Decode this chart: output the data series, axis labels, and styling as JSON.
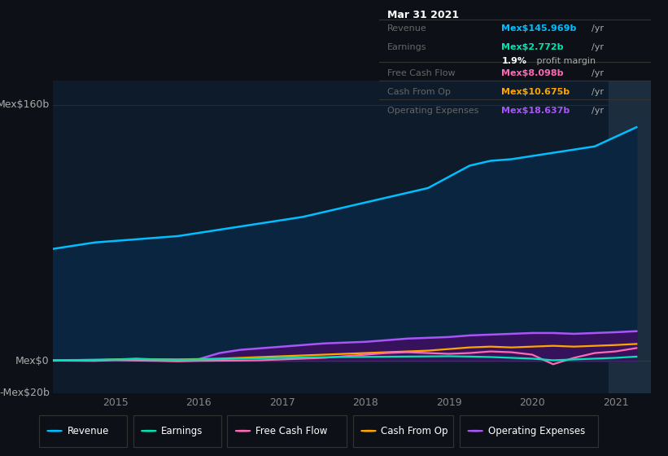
{
  "bg_color": "#0d1117",
  "plot_bg_color": "#0d1b2a",
  "title_box": {
    "date": "Mar 31 2021",
    "rows": [
      {
        "label": "Revenue",
        "value": "Mex$145.969b",
        "unit": "/yr",
        "color": "#00bfff"
      },
      {
        "label": "Earnings",
        "value": "Mex$2.772b",
        "unit": "/yr",
        "color": "#00e5b0"
      },
      {
        "label": "",
        "value": "1.9%",
        "unit": " profit margin",
        "color": "#ffffff"
      },
      {
        "label": "Free Cash Flow",
        "value": "Mex$8.098b",
        "unit": "/yr",
        "color": "#ff69b4"
      },
      {
        "label": "Cash From Op",
        "value": "Mex$10.675b",
        "unit": "/yr",
        "color": "#ffa500"
      },
      {
        "label": "Operating Expenses",
        "value": "Mex$18.637b",
        "unit": "/yr",
        "color": "#a855f7"
      }
    ]
  },
  "xlim": [
    2014.25,
    2021.42
  ],
  "ylim": [
    -20,
    175
  ],
  "yticks": [
    -20,
    0,
    160
  ],
  "ytick_labels": [
    "-Mex$20b",
    "Mex$0",
    "Mex$160b"
  ],
  "xtick_years": [
    2015,
    2016,
    2017,
    2018,
    2019,
    2020,
    2021
  ],
  "revenue_x": [
    2014.25,
    2014.5,
    2014.75,
    2015.0,
    2015.25,
    2015.5,
    2015.75,
    2016.0,
    2016.25,
    2016.5,
    2016.75,
    2017.0,
    2017.25,
    2017.5,
    2017.75,
    2018.0,
    2018.25,
    2018.5,
    2018.75,
    2019.0,
    2019.25,
    2019.5,
    2019.75,
    2020.0,
    2020.25,
    2020.5,
    2020.75,
    2021.0,
    2021.25
  ],
  "revenue_y": [
    70,
    72,
    74,
    75,
    76,
    77,
    78,
    80,
    82,
    84,
    86,
    88,
    90,
    93,
    96,
    99,
    102,
    105,
    108,
    115,
    122,
    125,
    126,
    128,
    130,
    132,
    134,
    140,
    145.969
  ],
  "op_exp_x": [
    2014.25,
    2014.5,
    2014.75,
    2015.0,
    2015.25,
    2015.5,
    2015.75,
    2016.0,
    2016.25,
    2016.5,
    2016.75,
    2017.0,
    2017.25,
    2017.5,
    2017.75,
    2018.0,
    2018.25,
    2018.5,
    2018.75,
    2019.0,
    2019.25,
    2019.5,
    2019.75,
    2020.0,
    2020.25,
    2020.5,
    2020.75,
    2021.0,
    2021.25
  ],
  "op_exp_y": [
    0.5,
    0.6,
    0.7,
    0.8,
    0.9,
    1.0,
    1.0,
    1.2,
    5.0,
    7.0,
    8.0,
    9.0,
    10.0,
    11.0,
    11.5,
    12.0,
    13.0,
    14.0,
    14.5,
    15.0,
    16.0,
    16.5,
    17.0,
    17.5,
    17.5,
    17.0,
    17.5,
    18.0,
    18.637
  ],
  "cash_op_x": [
    2014.25,
    2014.5,
    2014.75,
    2015.0,
    2015.25,
    2015.5,
    2015.75,
    2016.0,
    2016.25,
    2016.5,
    2016.75,
    2017.0,
    2017.25,
    2017.5,
    2017.75,
    2018.0,
    2018.25,
    2018.5,
    2018.75,
    2019.0,
    2019.25,
    2019.5,
    2019.75,
    2020.0,
    2020.25,
    2020.5,
    2020.75,
    2021.0,
    2021.25
  ],
  "cash_op_y": [
    0.2,
    0.3,
    0.5,
    1.0,
    1.5,
    1.0,
    0.8,
    1.2,
    1.5,
    2.0,
    2.5,
    3.0,
    3.5,
    4.0,
    4.5,
    5.0,
    5.5,
    6.0,
    6.5,
    7.5,
    8.5,
    9.0,
    8.5,
    9.0,
    9.5,
    9.0,
    9.5,
    10.0,
    10.675
  ],
  "fcf_x": [
    2014.25,
    2014.5,
    2014.75,
    2015.0,
    2015.25,
    2015.5,
    2015.75,
    2016.0,
    2016.25,
    2016.5,
    2016.75,
    2017.0,
    2017.25,
    2017.5,
    2017.75,
    2018.0,
    2018.25,
    2018.5,
    2018.75,
    2019.0,
    2019.25,
    2019.5,
    2019.75,
    2020.0,
    2020.25,
    2020.5,
    2020.75,
    2021.0,
    2021.25
  ],
  "fcf_y": [
    0.3,
    0.2,
    0.1,
    0.5,
    0.3,
    0.1,
    -0.2,
    0.1,
    0.2,
    0.3,
    0.5,
    1.0,
    1.5,
    2.0,
    3.0,
    4.0,
    5.0,
    5.5,
    5.0,
    4.5,
    5.0,
    6.0,
    5.5,
    4.0,
    -2.0,
    2.0,
    5.0,
    6.0,
    8.098
  ],
  "earnings_x": [
    2014.25,
    2014.5,
    2014.75,
    2015.0,
    2015.25,
    2015.5,
    2015.75,
    2016.0,
    2016.25,
    2016.5,
    2016.75,
    2017.0,
    2017.25,
    2017.5,
    2017.75,
    2018.0,
    2018.25,
    2018.5,
    2018.75,
    2019.0,
    2019.25,
    2019.5,
    2019.75,
    2020.0,
    2020.25,
    2020.5,
    2020.75,
    2021.0,
    2021.25
  ],
  "earnings_y": [
    0.5,
    0.6,
    0.8,
    1.0,
    1.2,
    1.0,
    0.8,
    1.0,
    1.2,
    1.5,
    1.8,
    2.0,
    2.2,
    2.4,
    2.5,
    2.6,
    2.7,
    2.8,
    2.9,
    3.0,
    2.8,
    2.5,
    2.0,
    1.5,
    0.5,
    1.0,
    1.5,
    2.0,
    2.772
  ],
  "legend": [
    {
      "label": "Revenue",
      "color": "#00bfff"
    },
    {
      "label": "Earnings",
      "color": "#00e5b0"
    },
    {
      "label": "Free Cash Flow",
      "color": "#ff69b4"
    },
    {
      "label": "Cash From Op",
      "color": "#ffa500"
    },
    {
      "label": "Operating Expenses",
      "color": "#a855f7"
    }
  ],
  "highlight_x_start": 2020.92,
  "highlight_x_end": 2021.42,
  "highlight_color": "#1c2d3f",
  "revenue_color": "#00bfff",
  "revenue_fill": "#0a2540",
  "op_exp_color": "#a855f7",
  "op_exp_fill": "#3b1060",
  "cash_op_color": "#ffa500",
  "fcf_color": "#ff69b4",
  "earnings_color": "#00e5b0",
  "grid_color": "#1e2d3d",
  "zero_line_color": "#2a3a4a"
}
